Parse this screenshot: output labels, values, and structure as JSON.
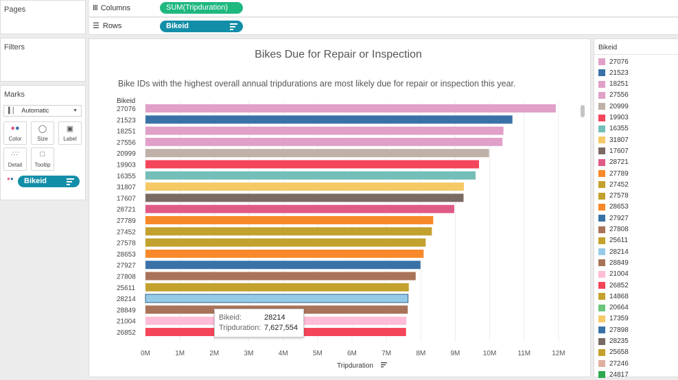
{
  "shelves": {
    "pages_label": "Pages",
    "columns_label": "Columns",
    "columns_pill": "SUM(Tripduration)",
    "rows_label": "Rows",
    "rows_pill": "Bikeid"
  },
  "filters": {
    "label": "Filters"
  },
  "marks": {
    "label": "Marks",
    "type": "Automatic",
    "cards": [
      "Color",
      "Size",
      "Label",
      "Detail",
      "Tooltip"
    ],
    "field_pill": "Bikeid"
  },
  "legend": {
    "title": "Bikeid",
    "items": [
      {
        "label": "27076",
        "color": "#e0a0c8"
      },
      {
        "label": "21523",
        "color": "#3a72a8"
      },
      {
        "label": "18251",
        "color": "#e0a0c8"
      },
      {
        "label": "27556",
        "color": "#e0a0c8"
      },
      {
        "label": "20999",
        "color": "#bfb0a8"
      },
      {
        "label": "19903",
        "color": "#f4455b"
      },
      {
        "label": "16355",
        "color": "#73bfb8"
      },
      {
        "label": "31807",
        "color": "#f5c966"
      },
      {
        "label": "17607",
        "color": "#7a6a64"
      },
      {
        "label": "28721",
        "color": "#e05a86"
      },
      {
        "label": "27789",
        "color": "#f8892a"
      },
      {
        "label": "27452",
        "color": "#c3a12e"
      },
      {
        "label": "27578",
        "color": "#c3a12e"
      },
      {
        "label": "28653",
        "color": "#f8892a"
      },
      {
        "label": "27927",
        "color": "#3a72a8"
      },
      {
        "label": "27808",
        "color": "#a9735a"
      },
      {
        "label": "25611",
        "color": "#c3a12e"
      },
      {
        "label": "28214",
        "color": "#96cbe8"
      },
      {
        "label": "28849",
        "color": "#a9735a"
      },
      {
        "label": "21004",
        "color": "#ffbcd6"
      },
      {
        "label": "26852",
        "color": "#f4455b"
      },
      {
        "label": "14868",
        "color": "#c3a12e"
      },
      {
        "label": "20664",
        "color": "#6cc57b"
      },
      {
        "label": "17359",
        "color": "#f5c966"
      },
      {
        "label": "27898",
        "color": "#3a72a8"
      },
      {
        "label": "28235",
        "color": "#7a6a64"
      },
      {
        "label": "25658",
        "color": "#c3a12e"
      },
      {
        "label": "27246",
        "color": "#e0b0a0"
      },
      {
        "label": "24817",
        "color": "#2ea84e"
      }
    ]
  },
  "tooltip": {
    "bikeid_label": "Bikeid:",
    "bikeid_value": "28214",
    "trip_label": "Tripduration:",
    "trip_value": "7,627,554"
  },
  "chart_data": {
    "type": "bar",
    "orientation": "horizontal",
    "title": "Bikes Due for Repair or Inspection",
    "subtitle": "Bike IDs with the highest overall annual tripdurations are most likely due for repair or inspection this year.",
    "ylabel": "Bikeid",
    "xlabel": "Tripduration",
    "xlim": [
      0,
      12500000
    ],
    "xticks": [
      {
        "value": 0,
        "label": "0M"
      },
      {
        "value": 1000000,
        "label": "1M"
      },
      {
        "value": 2000000,
        "label": "2M"
      },
      {
        "value": 3000000,
        "label": "3M"
      },
      {
        "value": 4000000,
        "label": "4M"
      },
      {
        "value": 5000000,
        "label": "5M"
      },
      {
        "value": 6000000,
        "label": "6M"
      },
      {
        "value": 7000000,
        "label": "7M"
      },
      {
        "value": 8000000,
        "label": "8M"
      },
      {
        "value": 9000000,
        "label": "9M"
      },
      {
        "value": 10000000,
        "label": "10M"
      },
      {
        "value": 11000000,
        "label": "11M"
      },
      {
        "value": 12000000,
        "label": "12M"
      }
    ],
    "grid": true,
    "categories": [
      "27076",
      "21523",
      "18251",
      "27556",
      "20999",
      "19903",
      "16355",
      "31807",
      "17607",
      "28721",
      "27789",
      "27452",
      "27578",
      "28653",
      "27927",
      "27808",
      "25611",
      "28214",
      "28849",
      "21004",
      "26852"
    ],
    "values": [
      11920000,
      10660000,
      10400000,
      10370000,
      9980000,
      9690000,
      9590000,
      9250000,
      9240000,
      8970000,
      8360000,
      8320000,
      8140000,
      8080000,
      7990000,
      7850000,
      7650000,
      7627554,
      7620000,
      7580000,
      7570000
    ],
    "colors": [
      "#e0a0c8",
      "#3a72a8",
      "#e0a0c8",
      "#e0a0c8",
      "#bfb0a8",
      "#f4455b",
      "#73bfb8",
      "#f5c966",
      "#7a6a64",
      "#e05a86",
      "#f8892a",
      "#c3a12e",
      "#c3a12e",
      "#f8892a",
      "#3a72a8",
      "#a9735a",
      "#c3a12e",
      "#96cbe8",
      "#a9735a",
      "#ffbcd6",
      "#f4455b"
    ],
    "highlighted": "28214"
  }
}
